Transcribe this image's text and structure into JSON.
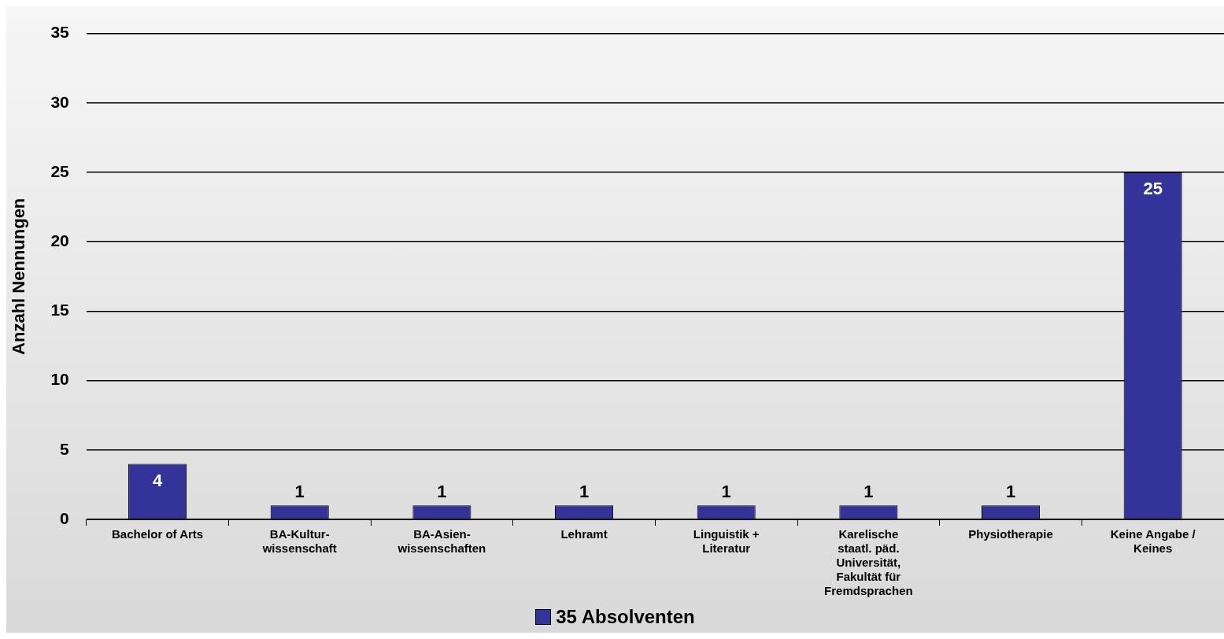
{
  "chart_data": {
    "type": "bar",
    "ylabel": "Anzahl Nennungen",
    "categories": [
      "Bachelor of Arts",
      "BA-Kultur-\nwissenschaft",
      "BA-Asien-\nwissenschaften",
      "Lehramt",
      "Linguistik +\nLiteratur",
      "Karelische\nstaatl. päd.\nUniversität,\nFakultät für\nFremdsprachen",
      "Physiotherapie",
      "Keine Angabe /\nKeines"
    ],
    "series": [
      {
        "name": "35 Absolventen",
        "color": "#333399",
        "values": [
          4,
          1,
          1,
          1,
          1,
          1,
          1,
          25
        ]
      }
    ],
    "ylim": [
      0,
      35
    ],
    "yticks": [
      0,
      5,
      10,
      15,
      20,
      25,
      30,
      35
    ],
    "grid": "y",
    "legend": "bottom",
    "data_labels": true
  }
}
